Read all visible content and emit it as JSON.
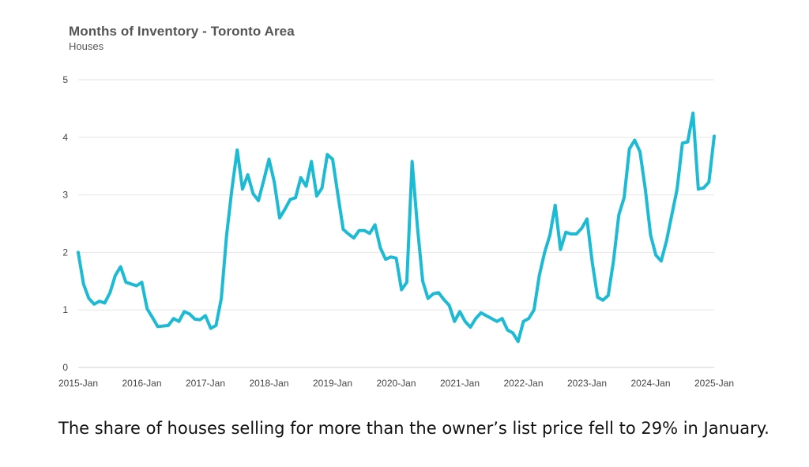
{
  "chart_data": {
    "type": "line",
    "title": "Months of Inventory - Toronto Area",
    "subtitle": "Houses",
    "xlabel": "",
    "ylabel": "",
    "ylim": [
      0,
      5
    ],
    "yticks": [
      0,
      1,
      2,
      3,
      4,
      5
    ],
    "xticks": [
      "2015-Jan",
      "2016-Jan",
      "2017-Jan",
      "2018-Jan",
      "2019-Jan",
      "2020-Jan",
      "2021-Jan",
      "2022-Jan",
      "2023-Jan",
      "2024-Jan",
      "2025-Jan"
    ],
    "x_start": "2015-Jan",
    "x_end": "2025-Jan",
    "grid": true,
    "line_color": "#1cbad3",
    "series": [
      {
        "values": [
          2.0,
          1.45,
          1.2,
          1.1,
          1.15,
          1.12,
          1.3,
          1.6,
          1.75,
          1.48,
          1.45,
          1.42,
          1.48,
          1.02,
          0.87,
          0.71,
          0.72,
          0.73,
          0.85,
          0.8,
          0.97,
          0.93,
          0.84,
          0.83,
          0.9,
          0.68,
          0.73,
          1.2,
          2.3,
          3.1,
          3.78,
          3.1,
          3.35,
          3.02,
          2.9,
          3.25,
          3.62,
          3.22,
          2.6,
          2.75,
          2.92,
          2.95,
          3.3,
          3.15,
          3.58,
          2.98,
          3.12,
          3.7,
          3.62,
          3.0,
          2.4,
          2.32,
          2.25,
          2.38,
          2.38,
          2.33,
          2.48,
          2.08,
          1.88,
          1.92,
          1.9,
          1.35,
          1.48,
          3.58,
          2.45,
          1.5,
          1.2,
          1.28,
          1.3,
          1.18,
          1.08,
          0.8,
          0.97,
          0.8,
          0.7,
          0.85,
          0.95,
          0.9,
          0.85,
          0.8,
          0.85,
          0.65,
          0.6,
          0.45,
          0.8,
          0.85,
          1.0,
          1.6,
          2.0,
          2.3,
          2.82,
          2.05,
          2.35,
          2.32,
          2.32,
          2.42,
          2.58,
          1.82,
          1.22,
          1.17,
          1.25,
          1.85,
          2.65,
          2.95,
          3.8,
          3.95,
          3.75,
          3.1,
          2.3,
          1.95,
          1.85,
          2.2,
          2.65,
          3.1,
          3.9,
          3.92,
          4.42,
          3.1,
          3.12,
          3.22,
          4.02
        ]
      }
    ]
  },
  "caption": "The share of houses selling for more than the owner’s list price fell to 29% in January."
}
